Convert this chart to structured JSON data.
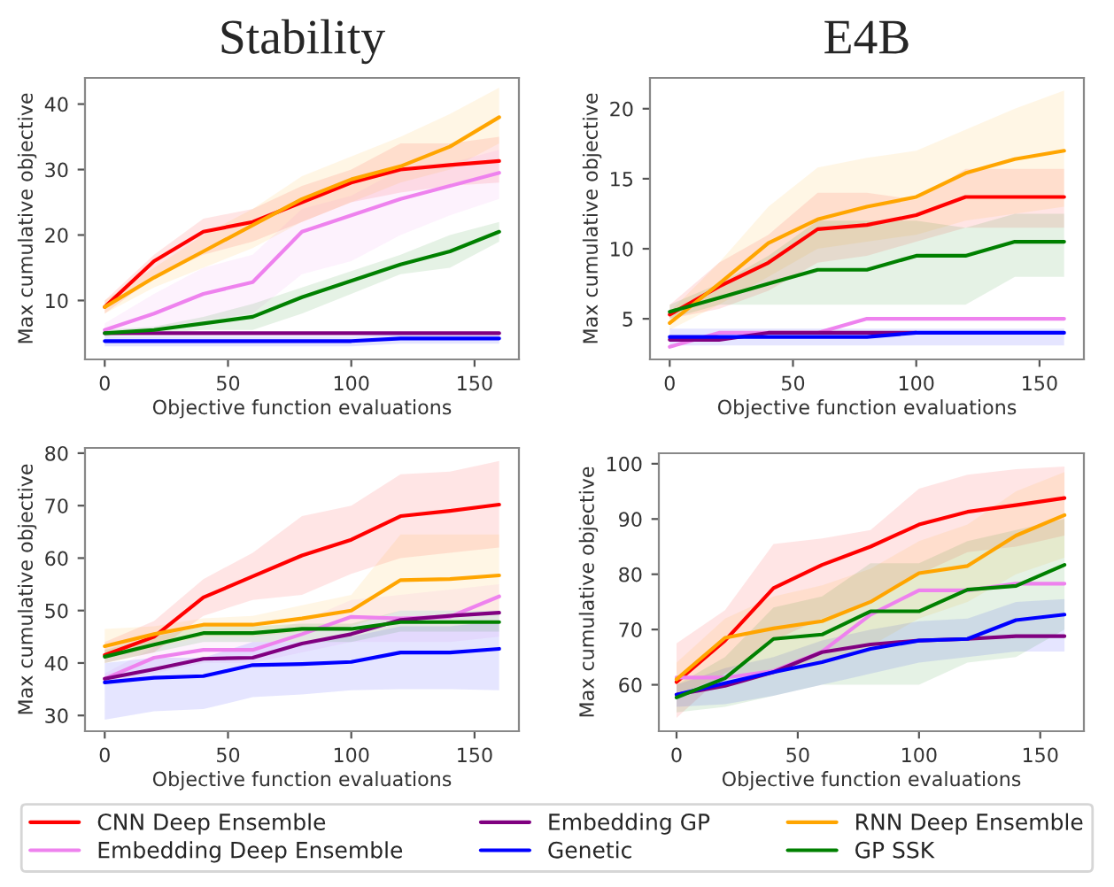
{
  "chart_data": [
    {
      "type": "line",
      "title": "Stability",
      "xlabel": "Objective function evaluations",
      "ylabel": "Max cumulative objective",
      "x": [
        0,
        20,
        40,
        60,
        80,
        100,
        120,
        140,
        160
      ],
      "xlim": [
        -8,
        168
      ],
      "xticks": [
        0,
        50,
        100,
        150
      ],
      "ylim": [
        1,
        44
      ],
      "yticks": [
        10,
        20,
        30,
        40
      ],
      "legend": "bottom",
      "series": [
        {
          "name": "CNN Deep Ensemble",
          "color": "#ff0000",
          "values": [
            9,
            16,
            20.5,
            22,
            25,
            28,
            30,
            30.7,
            31.3
          ],
          "lower": [
            8,
            13.5,
            17,
            19,
            22,
            25,
            26.5,
            27.5,
            28
          ],
          "upper": [
            10,
            17,
            22.5,
            24,
            27.5,
            30,
            34,
            34,
            35
          ]
        },
        {
          "name": "Embedding Deep Ensemble",
          "color": "#ee82ee",
          "values": [
            5.5,
            8,
            11,
            12.8,
            20.5,
            23,
            25.5,
            27.5,
            29.5
          ],
          "lower": [
            4.5,
            5.5,
            7,
            8,
            14,
            16,
            20,
            23,
            25.5
          ],
          "upper": [
            6.5,
            11,
            15,
            17,
            24,
            26,
            30,
            31,
            33
          ]
        },
        {
          "name": "Embedding GP",
          "color": "#800080",
          "values": [
            5,
            5,
            5,
            5,
            5,
            5,
            5,
            5,
            5
          ]
        },
        {
          "name": "Genetic",
          "color": "#0000ff",
          "values": [
            3.8,
            3.8,
            3.8,
            3.8,
            3.8,
            3.8,
            4.2,
            4.2,
            4.2
          ],
          "lower": [
            3,
            3,
            3,
            3,
            3,
            3,
            3.4,
            3.4,
            3.4
          ],
          "upper": [
            4.5,
            4.5,
            4.5,
            4.5,
            4.5,
            4.5,
            4.8,
            4.8,
            4.8
          ]
        },
        {
          "name": "RNN Deep Ensemble",
          "color": "#ffa500",
          "values": [
            9,
            13.5,
            17.5,
            21.5,
            25.5,
            28.5,
            30.5,
            33.5,
            38
          ],
          "lower": [
            8,
            12,
            15,
            18,
            22,
            25,
            28,
            30,
            34
          ],
          "upper": [
            10,
            15,
            20,
            24,
            29,
            32,
            35,
            38.5,
            42.5
          ]
        },
        {
          "name": "GP SSK",
          "color": "#008000",
          "values": [
            5,
            5.5,
            6.5,
            7.5,
            10.5,
            13,
            15.5,
            17.5,
            20.5
          ],
          "lower": [
            4.5,
            5,
            5.5,
            5.5,
            8,
            11,
            14,
            15,
            19
          ],
          "upper": [
            5.5,
            6,
            7.5,
            9.5,
            12,
            14.5,
            17,
            20,
            22
          ]
        }
      ]
    },
    {
      "type": "line",
      "title": "E4B",
      "xlabel": "Objective function evaluations",
      "ylabel": "Max cumulative objective",
      "x": [
        0,
        20,
        40,
        60,
        80,
        100,
        120,
        140,
        160
      ],
      "xlim": [
        -8,
        168
      ],
      "xticks": [
        0,
        50,
        100,
        150
      ],
      "ylim": [
        2.1,
        22.2
      ],
      "yticks": [
        5,
        10,
        15,
        20
      ],
      "series": [
        {
          "color": "#ff0000",
          "values": [
            5.3,
            7.3,
            9.0,
            11.4,
            11.7,
            12.4,
            13.7,
            13.7,
            13.7
          ],
          "lower": [
            5,
            5.7,
            7,
            9,
            9.5,
            10.5,
            11.5,
            11.5,
            11.5
          ],
          "upper": [
            6,
            9,
            11,
            14,
            14,
            13.5,
            15.7,
            15.7,
            15.7
          ]
        },
        {
          "color": "#ee82ee",
          "values": [
            3,
            4,
            4,
            4,
            5,
            5,
            5,
            5,
            5
          ]
        },
        {
          "color": "#800080",
          "values": [
            3.5,
            3.5,
            4,
            4,
            4,
            4,
            null,
            null,
            null
          ]
        },
        {
          "color": "#0000ff",
          "values": [
            3.7,
            3.7,
            3.7,
            3.7,
            3.7,
            4,
            4,
            4,
            4
          ],
          "lower": [
            3.1,
            3.1,
            3.1,
            3.1,
            3.1,
            3.1,
            3.1,
            3.1,
            3.1
          ],
          "upper": [
            4.3,
            4.3,
            4.3,
            4.3,
            4.3,
            4.3,
            4.3,
            4.3,
            4.3
          ]
        },
        {
          "color": "#ffa500",
          "values": [
            4.7,
            7.5,
            10.4,
            12.1,
            13.0,
            13.7,
            15.4,
            16.4,
            17.0
          ],
          "lower": [
            4.2,
            6,
            8,
            10,
            10.5,
            11,
            12,
            12.5,
            13
          ],
          "upper": [
            5.5,
            9,
            13,
            15.8,
            16.5,
            17,
            18.5,
            20,
            21.3
          ]
        },
        {
          "color": "#008000",
          "values": [
            5.5,
            6.5,
            7.5,
            8.5,
            8.5,
            9.5,
            9.5,
            10.5,
            10.5
          ],
          "lower": [
            5,
            6,
            6,
            6,
            6,
            6,
            6,
            8,
            8
          ],
          "upper": [
            6,
            7.5,
            9.5,
            12,
            12,
            12,
            11.5,
            12.5,
            12.5
          ]
        }
      ]
    },
    {
      "type": "line",
      "xlabel": "Objective function evaluations",
      "ylabel": "Max cumulative objective",
      "x": [
        0,
        20,
        40,
        60,
        80,
        100,
        120,
        140,
        160
      ],
      "xlim": [
        -8,
        168
      ],
      "xticks": [
        0,
        50,
        100,
        150
      ],
      "ylim": [
        27,
        81
      ],
      "yticks": [
        30,
        40,
        50,
        60,
        70,
        80
      ],
      "series": [
        {
          "color": "#ff0000",
          "values": [
            41.5,
            45,
            52.5,
            56.5,
            60.5,
            63.5,
            68,
            69,
            70.2
          ],
          "lower": [
            40,
            42,
            49,
            52,
            53,
            57,
            60,
            61,
            62
          ],
          "upper": [
            44,
            48,
            56,
            61,
            68,
            70,
            76,
            76.5,
            78.5
          ]
        },
        {
          "color": "#ee82ee",
          "values": [
            37,
            41,
            42.5,
            42.5,
            45.5,
            48.8,
            48.5,
            48.8,
            52.7
          ],
          "lower": [
            36,
            38,
            40,
            40,
            42,
            44,
            44,
            44,
            45
          ],
          "upper": [
            38,
            43,
            45,
            45,
            48,
            52,
            53,
            54,
            55
          ]
        },
        {
          "color": "#800080",
          "values": [
            37,
            38.8,
            40.8,
            41,
            43.7,
            45.5,
            48.2,
            49,
            49.6
          ]
        },
        {
          "color": "#0000ff",
          "values": [
            36.3,
            37.2,
            37.5,
            39.6,
            39.8,
            40.2,
            42,
            42,
            42.7
          ],
          "lower": [
            29.2,
            30.8,
            31.2,
            33.5,
            34,
            34.8,
            35,
            35,
            34.8
          ],
          "upper": [
            40,
            41,
            41,
            44,
            44,
            45,
            47,
            47,
            48
          ]
        },
        {
          "color": "#ffa500",
          "values": [
            43.2,
            45.5,
            47.3,
            47.3,
            48.5,
            50,
            55.8,
            56,
            56.7
          ],
          "lower": [
            41,
            43,
            45,
            45,
            46,
            47,
            50,
            50,
            50
          ],
          "upper": [
            46.5,
            47,
            48.5,
            49,
            51,
            53,
            64.5,
            64.5,
            64.5
          ]
        },
        {
          "color": "#008000",
          "values": [
            41.2,
            43.5,
            45.7,
            45.7,
            46.5,
            46.5,
            47.8,
            47.8,
            47.8
          ],
          "lower": [
            40,
            42,
            44,
            44,
            44,
            44,
            46,
            46,
            46
          ],
          "upper": [
            42.5,
            45,
            47,
            47,
            47.5,
            47.5,
            50,
            50,
            50
          ]
        }
      ]
    },
    {
      "type": "line",
      "xlabel": "Objective function evaluations",
      "ylabel": "Max cumulative objective",
      "x": [
        0,
        20,
        40,
        60,
        80,
        100,
        120,
        140,
        160
      ],
      "xlim": [
        -7.3,
        168
      ],
      "xticks": [
        0,
        50,
        100,
        150
      ],
      "ylim": [
        51.6,
        101.9
      ],
      "yticks": [
        60,
        70,
        80,
        90,
        100
      ],
      "series": [
        {
          "color": "#ff0000",
          "values": [
            60.5,
            68,
            77.5,
            81.7,
            85,
            89,
            91.3,
            92.5,
            93.8
          ],
          "lower": [
            54,
            62,
            68,
            72,
            75,
            80,
            84,
            85,
            87
          ],
          "upper": [
            67.5,
            73.5,
            85.5,
            86.5,
            88,
            95.5,
            98,
            99,
            99.5
          ]
        },
        {
          "color": "#ee82ee",
          "values": [
            61.3,
            61.3,
            62.5,
            66,
            72.7,
            77.1,
            77.1,
            78.3,
            78.3
          ]
        },
        {
          "color": "#800080",
          "values": [
            58.2,
            59.8,
            62.3,
            65.9,
            67.3,
            68,
            68.3,
            68.8,
            68.8
          ]
        },
        {
          "color": "#0000ff",
          "values": [
            58.2,
            60.3,
            62.3,
            64.1,
            66.5,
            68,
            68.3,
            71.7,
            72.7
          ],
          "lower": [
            56,
            56.5,
            58,
            60,
            62,
            64,
            65,
            66,
            66
          ],
          "upper": [
            60,
            63,
            65,
            68,
            70,
            71.5,
            72,
            75,
            75.5
          ]
        },
        {
          "color": "#ffa500",
          "values": [
            61,
            68.5,
            70.2,
            71.5,
            75,
            80.2,
            81.5,
            87,
            90.7
          ],
          "lower": [
            58,
            62,
            62,
            64,
            67,
            72,
            75,
            80,
            83
          ],
          "upper": [
            64,
            72,
            76,
            78,
            81,
            86,
            89,
            95,
            98.5
          ]
        },
        {
          "color": "#008000",
          "values": [
            57.7,
            61.2,
            68.3,
            69.1,
            73.3,
            73.3,
            77.2,
            77.9,
            81.7
          ],
          "lower": [
            55,
            56,
            58,
            60,
            60,
            60,
            64,
            65,
            70
          ],
          "upper": [
            60,
            65,
            74,
            76,
            82,
            82,
            86,
            88,
            90
          ]
        }
      ]
    }
  ]
}
